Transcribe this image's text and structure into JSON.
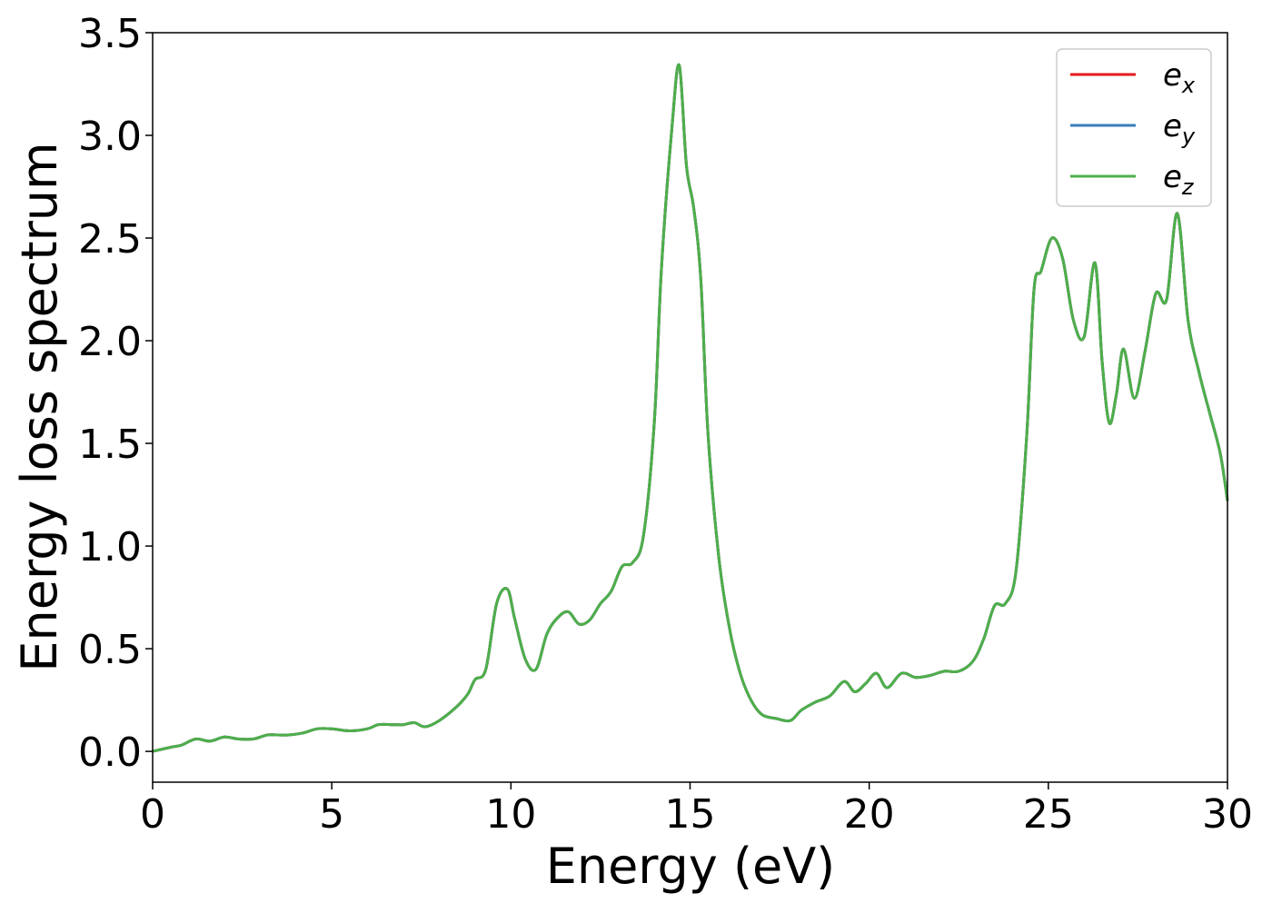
{
  "chart_data": {
    "type": "line",
    "xlabel": "Energy (eV)",
    "ylabel": "Energy loss spectrum",
    "xlim": [
      0,
      30
    ],
    "ylim": [
      -0.15,
      3.5
    ],
    "xticks": [
      "0",
      "5",
      "10",
      "15",
      "20",
      "25",
      "30"
    ],
    "yticks": [
      "0.0",
      "0.5",
      "1.0",
      "1.5",
      "2.0",
      "2.5",
      "3.0",
      "3.5"
    ],
    "grid": false,
    "legend_position": "top-right",
    "series": [
      {
        "name": "e",
        "subscript": "x",
        "color": "#e41a1c"
      },
      {
        "name": "e",
        "subscript": "y",
        "color": "#377eb8"
      },
      {
        "name": "e",
        "subscript": "z",
        "color": "#4daf4a"
      }
    ],
    "x": [
      0,
      0.5,
      0.8,
      1.2,
      1.6,
      2.0,
      2.4,
      2.8,
      3.2,
      3.5,
      3.8,
      4.2,
      4.6,
      5.0,
      5.5,
      6.0,
      6.3,
      6.7,
      7.0,
      7.3,
      7.6,
      8.0,
      8.5,
      8.8,
      9.0,
      9.3,
      9.6,
      9.9,
      10.1,
      10.4,
      10.7,
      11.0,
      11.3,
      11.6,
      11.9,
      12.2,
      12.5,
      12.8,
      13.1,
      13.4,
      13.7,
      14.0,
      14.2,
      14.5,
      14.7,
      14.9,
      15.1,
      15.3,
      15.5,
      15.8,
      16.1,
      16.4,
      16.7,
      17.0,
      17.4,
      17.8,
      18.1,
      18.5,
      18.9,
      19.3,
      19.6,
      19.9,
      20.2,
      20.5,
      20.9,
      21.3,
      21.7,
      22.1,
      22.5,
      22.9,
      23.2,
      23.5,
      23.8,
      24.1,
      24.4,
      24.6,
      24.8,
      25.1,
      25.4,
      25.7,
      26.0,
      26.3,
      26.5,
      26.7,
      26.9,
      27.1,
      27.4,
      27.7,
      28.0,
      28.3,
      28.6,
      28.9,
      29.2,
      29.5,
      29.8,
      30.0
    ],
    "y": [
      0.0,
      0.02,
      0.03,
      0.06,
      0.05,
      0.07,
      0.06,
      0.06,
      0.08,
      0.08,
      0.08,
      0.09,
      0.11,
      0.11,
      0.1,
      0.11,
      0.13,
      0.13,
      0.13,
      0.14,
      0.12,
      0.15,
      0.22,
      0.28,
      0.35,
      0.4,
      0.72,
      0.79,
      0.65,
      0.45,
      0.4,
      0.57,
      0.65,
      0.68,
      0.62,
      0.64,
      0.72,
      0.78,
      0.9,
      0.92,
      1.05,
      1.6,
      2.35,
      3.05,
      3.34,
      2.85,
      2.65,
      2.3,
      1.55,
      0.95,
      0.6,
      0.38,
      0.25,
      0.18,
      0.16,
      0.15,
      0.2,
      0.24,
      0.27,
      0.34,
      0.29,
      0.33,
      0.38,
      0.31,
      0.38,
      0.36,
      0.37,
      0.39,
      0.39,
      0.44,
      0.55,
      0.71,
      0.72,
      0.88,
      1.55,
      2.25,
      2.34,
      2.5,
      2.4,
      2.1,
      2.02,
      2.38,
      1.9,
      1.6,
      1.74,
      1.96,
      1.72,
      1.95,
      2.23,
      2.2,
      2.62,
      2.1,
      1.85,
      1.65,
      1.45,
      1.22
    ]
  }
}
